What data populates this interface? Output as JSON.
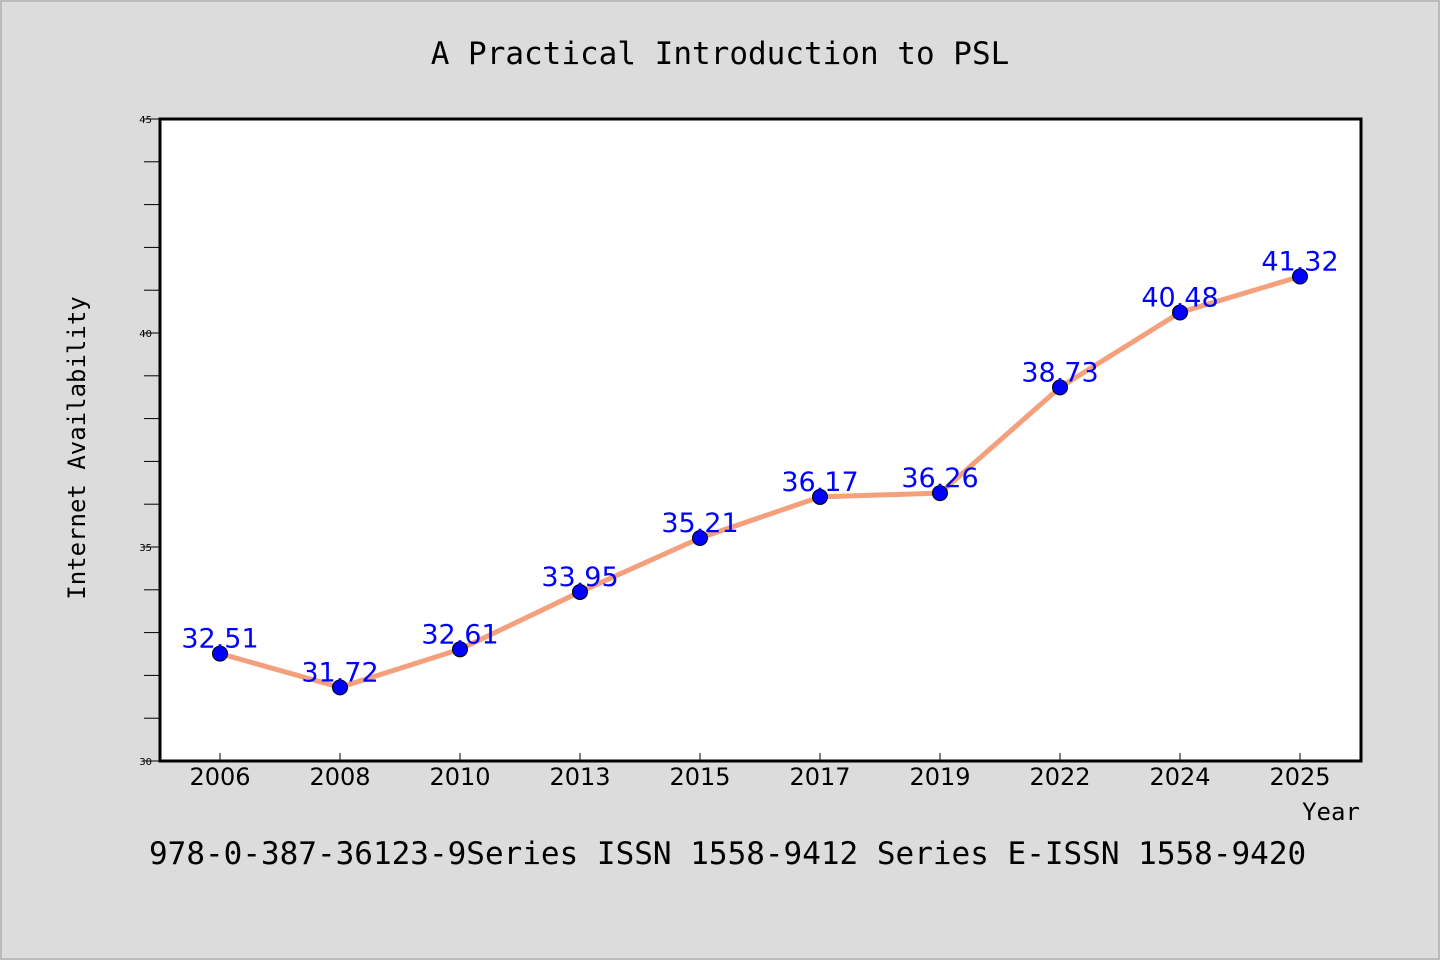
{
  "chart_data": {
    "type": "line",
    "title": "A Practical Introduction to PSL",
    "xlabel": "Year",
    "ylabel": "Internet Availability",
    "categories": [
      "2006",
      "2008",
      "2010",
      "2013",
      "2015",
      "2017",
      "2019",
      "2022",
      "2024",
      "2025"
    ],
    "series": [
      {
        "values": [
          32.51,
          31.72,
          32.61,
          33.95,
          35.21,
          36.17,
          36.26,
          38.73,
          40.48,
          41.32
        ]
      }
    ],
    "data_labels": [
      "32.51",
      "31.72",
      "32.61",
      "33.95",
      "35.21",
      "36.17",
      "36.26",
      "38.73",
      "40.48",
      "41.32"
    ],
    "ylim": [
      30,
      45
    ],
    "yticks": [
      30,
      35,
      40,
      45
    ],
    "ytick_labels": [
      "30",
      "35",
      "40",
      "45"
    ],
    "minor_yticks": [
      31,
      32,
      33,
      34,
      36,
      37,
      38,
      39,
      41,
      42,
      43,
      44
    ],
    "grid": false,
    "legend": "none",
    "footer": "978-0-387-36123-9Series ISSN 1558-9412 Series E-ISSN 1558-9420",
    "colors": {
      "line": "#f4a07c",
      "marker": "#0000ff",
      "label": "#0000ff",
      "background": "#dcdcdc",
      "plot_background": "#ffffff"
    }
  }
}
